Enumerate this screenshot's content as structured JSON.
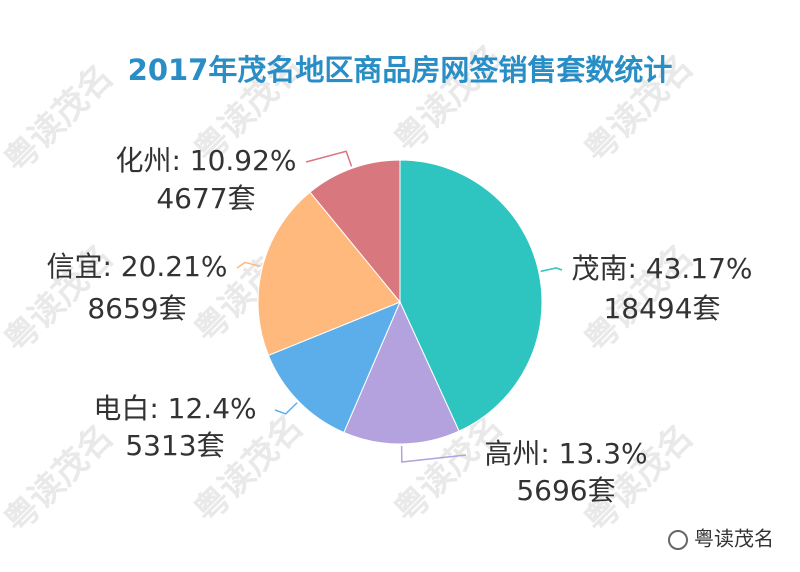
{
  "chart_data": {
    "type": "pie",
    "title": "2017年茂名地区商品房网签销售套数统计",
    "values": [
      43.17,
      13.3,
      12.4,
      20.21,
      10.92
    ],
    "value_labels": [
      "茂南: 43.17%",
      "高州: 13.3%",
      "电白: 12.4%",
      "信宜: 20.21%",
      "化州: 10.92%"
    ],
    "counts": [
      18494,
      5696,
      5313,
      8659,
      4677
    ],
    "count_labels": [
      "18494套",
      "5696套",
      "5313套",
      "8659套",
      "4677套"
    ],
    "colors": [
      "#2ec4c0",
      "#b3a2de",
      "#5caeea",
      "#ffb97c",
      "#d9777f"
    ]
  },
  "watermark": "粤读茂名",
  "footer": "粤读茂名"
}
